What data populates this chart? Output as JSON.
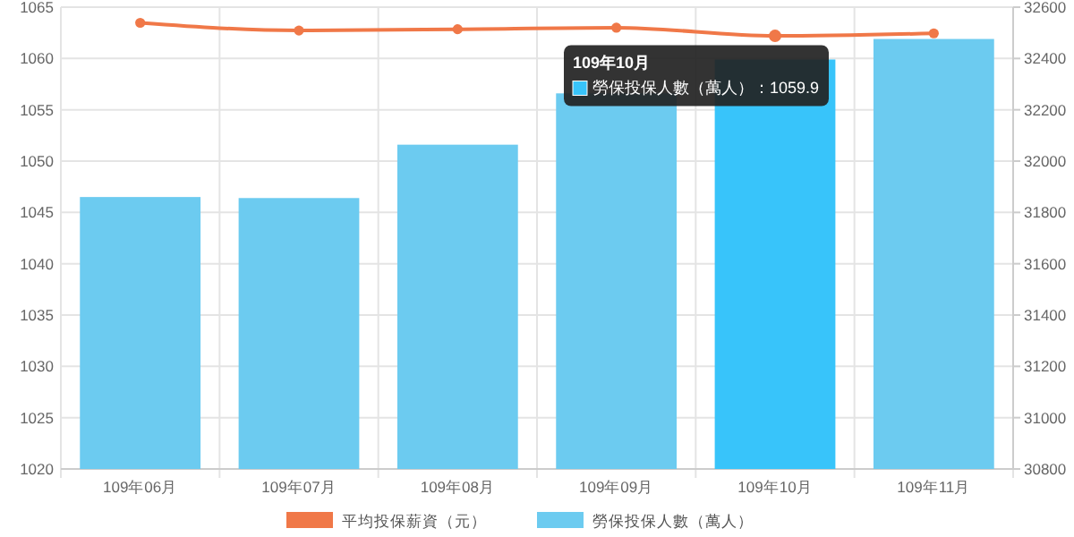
{
  "chart_data": {
    "type": "bar",
    "categories": [
      "109年06月",
      "109年07月",
      "109年08月",
      "109年09月",
      "109年10月",
      "109年11月"
    ],
    "series": [
      {
        "name": "平均投保薪資（元）",
        "type": "line",
        "axis": "y2",
        "color": "#f07848",
        "values": [
          32539,
          32509,
          32514,
          32520,
          32488,
          32498
        ]
      },
      {
        "name": "勞保投保人數（萬人）",
        "color": "#6ccbf0",
        "colors": [
          "#6ccbf0",
          "#6ccbf0",
          "#6ccbf0",
          "#6ccbf0",
          "#38c4fa",
          "#6ccbf0"
        ],
        "values": [
          1046.5,
          1046.4,
          1051.6,
          1056.6,
          1059.9,
          1061.9
        ]
      }
    ],
    "ylim": [
      1020,
      1065
    ],
    "yticks": [
      1020,
      1025,
      1030,
      1035,
      1040,
      1045,
      1050,
      1055,
      1060,
      1065
    ],
    "y2lim": [
      30800,
      32600
    ],
    "y2ticks": [
      30800,
      31000,
      31200,
      31400,
      31600,
      31800,
      32000,
      32200,
      32400,
      32600
    ],
    "grid": true,
    "legend": "bottom",
    "marker": "circle",
    "annotations": [
      "109年10月",
      {
        "text": "勞保投保人數（萬人）：1059.9",
        "x": "109年10月",
        "y": 1059.9
      }
    ]
  }
}
